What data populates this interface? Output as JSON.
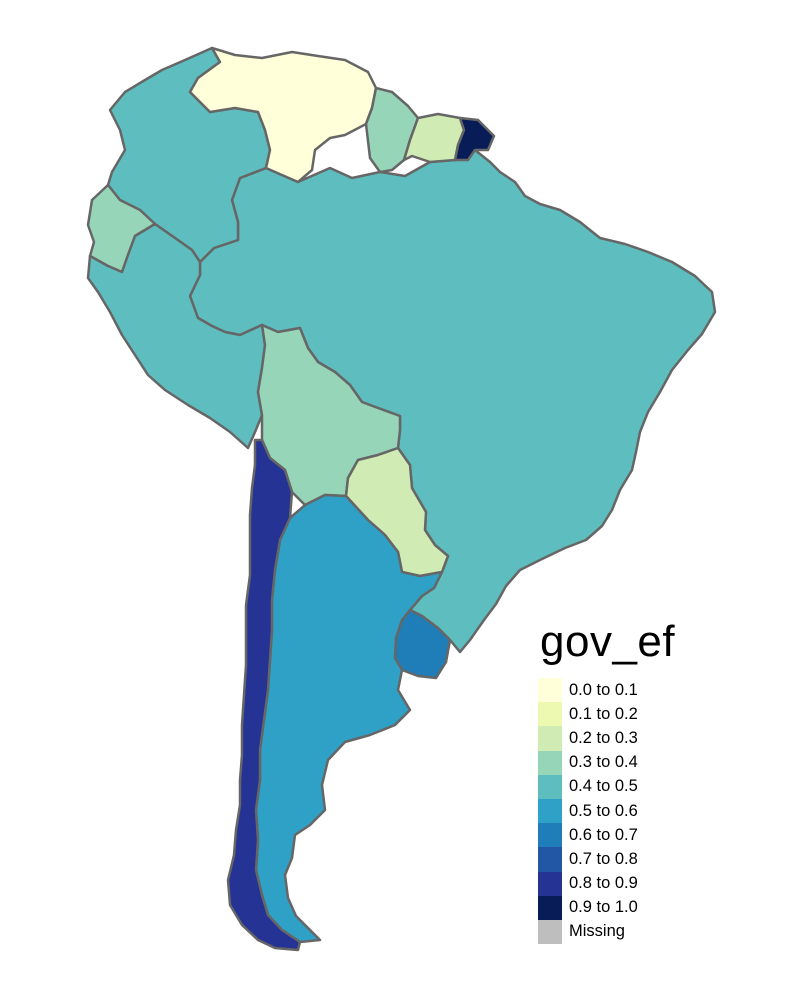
{
  "legend": {
    "title": "gov_ef",
    "items": [
      {
        "label": "0.0 to 0.1",
        "color": "#FFFFD9"
      },
      {
        "label": "0.1 to 0.2",
        "color": "#EDF8B1"
      },
      {
        "label": "0.2 to 0.3",
        "color": "#D0ECB4"
      },
      {
        "label": "0.3 to 0.4",
        "color": "#97D5B9"
      },
      {
        "label": "0.4 to 0.5",
        "color": "#5EBEBF"
      },
      {
        "label": "0.5 to 0.6",
        "color": "#2FA1C6"
      },
      {
        "label": "0.6 to 0.7",
        "color": "#1F7DB7"
      },
      {
        "label": "0.7 to 0.8",
        "color": "#2257A5"
      },
      {
        "label": "0.8 to 0.9",
        "color": "#253494"
      },
      {
        "label": "0.9 to 1.0",
        "color": "#081D58"
      },
      {
        "label": "Missing",
        "color": "#BEBEBE"
      }
    ]
  },
  "regions": [
    {
      "name": "Venezuela",
      "class": "0.0 to 0.1",
      "color": "#FFFFD9"
    },
    {
      "name": "Colombia",
      "class": "0.4 to 0.5",
      "color": "#5EBEBF"
    },
    {
      "name": "Ecuador",
      "class": "0.3 to 0.4",
      "color": "#97D5B9"
    },
    {
      "name": "Peru",
      "class": "0.4 to 0.5",
      "color": "#5EBEBF"
    },
    {
      "name": "Brazil",
      "class": "0.4 to 0.5",
      "color": "#5EBEBF"
    },
    {
      "name": "Guyana",
      "class": "0.3 to 0.4",
      "color": "#97D5B9"
    },
    {
      "name": "Suriname",
      "class": "0.2 to 0.3",
      "color": "#D0ECB4"
    },
    {
      "name": "French Guiana",
      "class": "0.9 to 1.0",
      "color": "#081D58"
    },
    {
      "name": "Bolivia",
      "class": "0.3 to 0.4",
      "color": "#97D5B9"
    },
    {
      "name": "Paraguay",
      "class": "0.2 to 0.3",
      "color": "#D0ECB4"
    },
    {
      "name": "Uruguay",
      "class": "0.6 to 0.7",
      "color": "#1F7DB7"
    },
    {
      "name": "Argentina",
      "class": "0.5 to 0.6",
      "color": "#2FA1C6"
    },
    {
      "name": "Chile",
      "class": "0.8 to 0.9",
      "color": "#253494"
    }
  ]
}
